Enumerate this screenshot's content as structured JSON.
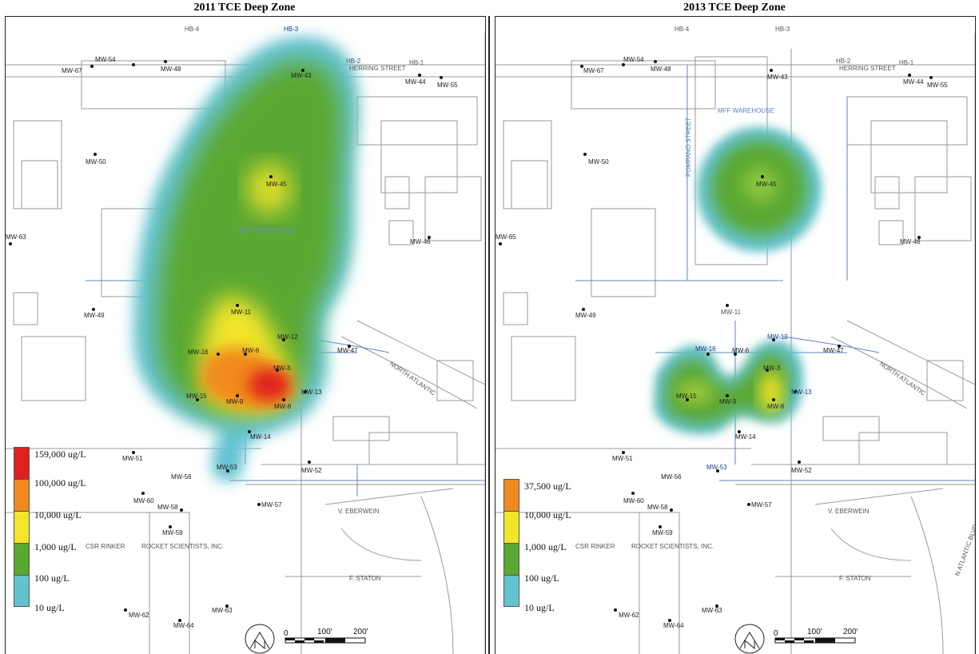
{
  "panels": [
    {
      "title": "2011 TCE Deep Zone",
      "legend": [
        "159,000 ug/L",
        "100,000 ug/L",
        "10,000 ug/L",
        "1,000 ug/L",
        "100 ug/L",
        "10 ug/L"
      ],
      "wells": [
        "MW-54",
        "MW-67",
        "MW-48",
        "MW-43",
        "MW-44",
        "MW-55",
        "MW-50",
        "MW-45",
        "MW-46",
        "MW-63",
        "MW-49",
        "MW-11",
        "MW-12",
        "MW-16",
        "MW-6",
        "MW-3",
        "MW-47",
        "MW-13",
        "MW-15",
        "MW-9",
        "MW-8",
        "MW-14",
        "MW-51",
        "MW-53",
        "MW-52",
        "MW-56",
        "MW-60",
        "MW-58",
        "MW-57",
        "MW-59",
        "MW-62",
        "MW-64",
        "MW-63"
      ],
      "labels": [
        "HERRING STREET",
        "MFF WAREHOUSE",
        "NORTH ATLANTIC",
        "V. EBERWEIN",
        "F. STATON",
        "ROCKET SCIENTISTS, INC.",
        "CSR RINKER",
        "HB-1",
        "HB-2",
        "HB-3",
        "HB-4"
      ],
      "scale": [
        "0",
        "100'",
        "200'"
      ]
    },
    {
      "title": "2013 TCE Deep Zone",
      "legend": [
        "37,500 ug/L",
        "10,000 ug/L",
        "1,000 ug/L",
        "100 ug/L",
        "10 ug/L"
      ],
      "wells": [
        "MW-54",
        "MW-67",
        "MW-48",
        "MW-43",
        "MW-44",
        "MW-55",
        "MW-50",
        "MW-45",
        "MW-46",
        "MW-65",
        "MW-49",
        "MW-11",
        "MW-12",
        "MW-16",
        "MW-6",
        "MW-3",
        "MW-47",
        "MW-13",
        "MW-15",
        "MW-9",
        "MW-8",
        "MW-14",
        "MW-51",
        "MW-53",
        "MW-52",
        "MW-56",
        "MW-60",
        "MW-58",
        "MW-57",
        "MW-59",
        "MW-62",
        "MW-64",
        "MW-63"
      ],
      "labels": [
        "HERRING STREET",
        "MFF WAREHOUSE",
        "POMPANO STREET",
        "NORTH ATLANTIC",
        "V. EBERWEIN",
        "F. STATON",
        "ROCKET SCIENTISTS, INC.",
        "CSR RINKER",
        "N ATLANTIC BLVD",
        "HB-1",
        "HB-2",
        "HB-3",
        "HB-4"
      ],
      "scale": [
        "0",
        "100'",
        "200'"
      ]
    }
  ],
  "colors": {
    "red": "#e0201c",
    "orange": "#f08a1e",
    "yellow": "#f2e52a",
    "green": "#5aa832",
    "cyan": "#63c2d0"
  }
}
